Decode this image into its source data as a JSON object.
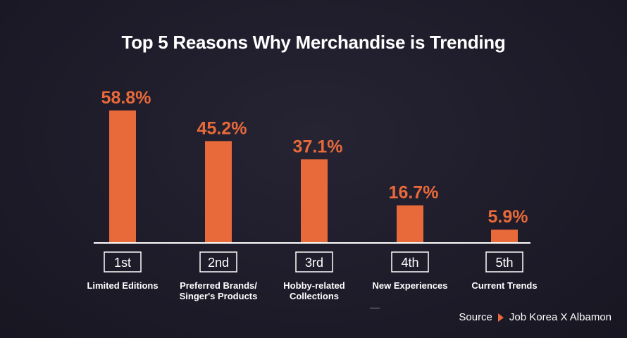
{
  "title": "Top 5 Reasons Why Merchandise is Trending",
  "source": {
    "label": "Source",
    "text": "Job Korea X Albamon"
  },
  "colors": {
    "bar": "#e8693a",
    "background": "#1f1d2b",
    "axis": "#ffffff"
  },
  "chart_data": {
    "type": "bar",
    "title": "Top 5 Reasons Why Merchandise is Trending",
    "ranks": [
      "1st",
      "2nd",
      "3rd",
      "4th",
      "5th"
    ],
    "categories": [
      [
        "Limited Editions"
      ],
      [
        "Preferred Brands/",
        "Singer's Products"
      ],
      [
        "Hobby-related",
        "Collections"
      ],
      [
        "New Experiences"
      ],
      [
        "Current Trends"
      ]
    ],
    "values": [
      58.8,
      45.2,
      37.1,
      16.7,
      5.9
    ],
    "value_labels": [
      "58.8%",
      "45.2%",
      "37.1%",
      "16.7%",
      "5.9%"
    ],
    "ylim": [
      0,
      60
    ],
    "grid": false,
    "legend": "none"
  }
}
